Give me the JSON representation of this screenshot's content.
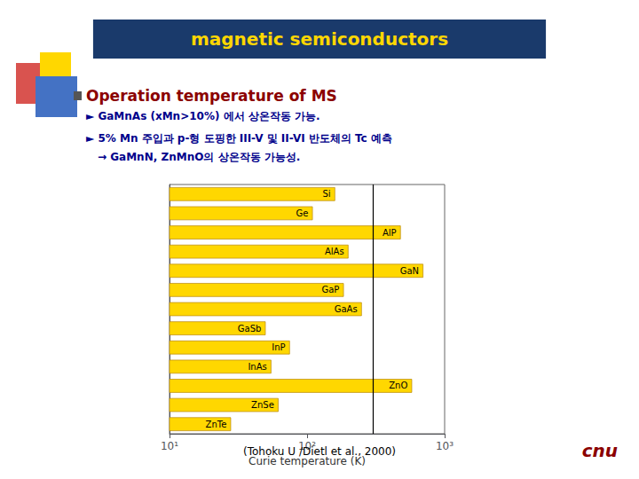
{
  "chart_data": {
    "type": "bar",
    "orientation": "horizontal",
    "title": "magnetic semiconductors",
    "subtitle": "Operation temperature of MS",
    "annotations": [
      "► GaMnAs (xMn>10%) 에서 상온작동 가능.",
      "► 5% Mn 주입과 p-형 도핑한 III-V 및 II-VI 반도체의 Tc 예측",
      "→ GaMnN, ZnMnO의 상온작동 가능성.",
      "(Tohoku U /Dietl et al., 2000)",
      "cnu"
    ],
    "xlabel": "Curie temperature (K)",
    "categories": [
      "Si",
      "Ge",
      "AlP",
      "AlAs",
      "GaN",
      "GaP",
      "GaAs",
      "GaSb",
      "InP",
      "InAs",
      "ZnO",
      "ZnSe",
      "ZnTe"
    ],
    "values": [
      160,
      110,
      480,
      200,
      700,
      185,
      250,
      50,
      75,
      55,
      580,
      62,
      28
    ],
    "color": "#FFD700",
    "log": "x",
    "xlim": [
      10,
      1000
    ],
    "xticks": [
      {
        "value": 10,
        "label": "10¹"
      },
      {
        "value": 100,
        "label": "10²"
      },
      {
        "value": 1000,
        "label": "10³"
      }
    ],
    "grid": false,
    "tick_labels": "x",
    "vline": 300
  }
}
